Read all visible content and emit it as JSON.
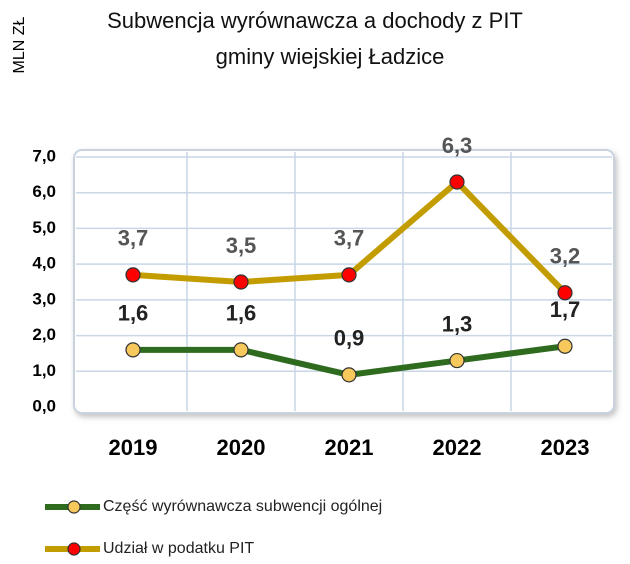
{
  "chart_data": {
    "type": "line",
    "title": [
      "Subwencja wyrównawcza a dochody z PIT",
      "gminy wiejskiej Ładzice"
    ],
    "y_label": "MLN ZŁ",
    "categories": [
      "2019",
      "2020",
      "2021",
      "2022",
      "2023"
    ],
    "series": [
      {
        "name": "Część wyrównawcza subwencji ogólnej",
        "color": "#2e6b1f",
        "marker_color": "#f7c95c",
        "values": [
          1.6,
          1.6,
          0.9,
          1.3,
          1.7
        ],
        "value_labels": [
          "1,6",
          "1,6",
          "0,9",
          "1,3",
          "1,7"
        ]
      },
      {
        "name": "Udział w podatku PIT",
        "color": "#c39c00",
        "marker_color": "#ff0000",
        "values": [
          3.7,
          3.5,
          3.7,
          6.3,
          3.2
        ],
        "value_labels": [
          "3,7",
          "3,5",
          "3,7",
          "6,3",
          "3,2"
        ]
      }
    ],
    "ylim": [
      0,
      7
    ],
    "yticks": [
      {
        "value": 0,
        "label": "0,0"
      },
      {
        "value": 1,
        "label": "1,0"
      },
      {
        "value": 2,
        "label": "2,0"
      },
      {
        "value": 3,
        "label": "3,0"
      },
      {
        "value": 4,
        "label": "4,0"
      },
      {
        "value": 5,
        "label": "5,0"
      },
      {
        "value": 6,
        "label": "6,0"
      },
      {
        "value": 7,
        "label": "7,0"
      }
    ],
    "grid": true,
    "legend": "bottom"
  }
}
